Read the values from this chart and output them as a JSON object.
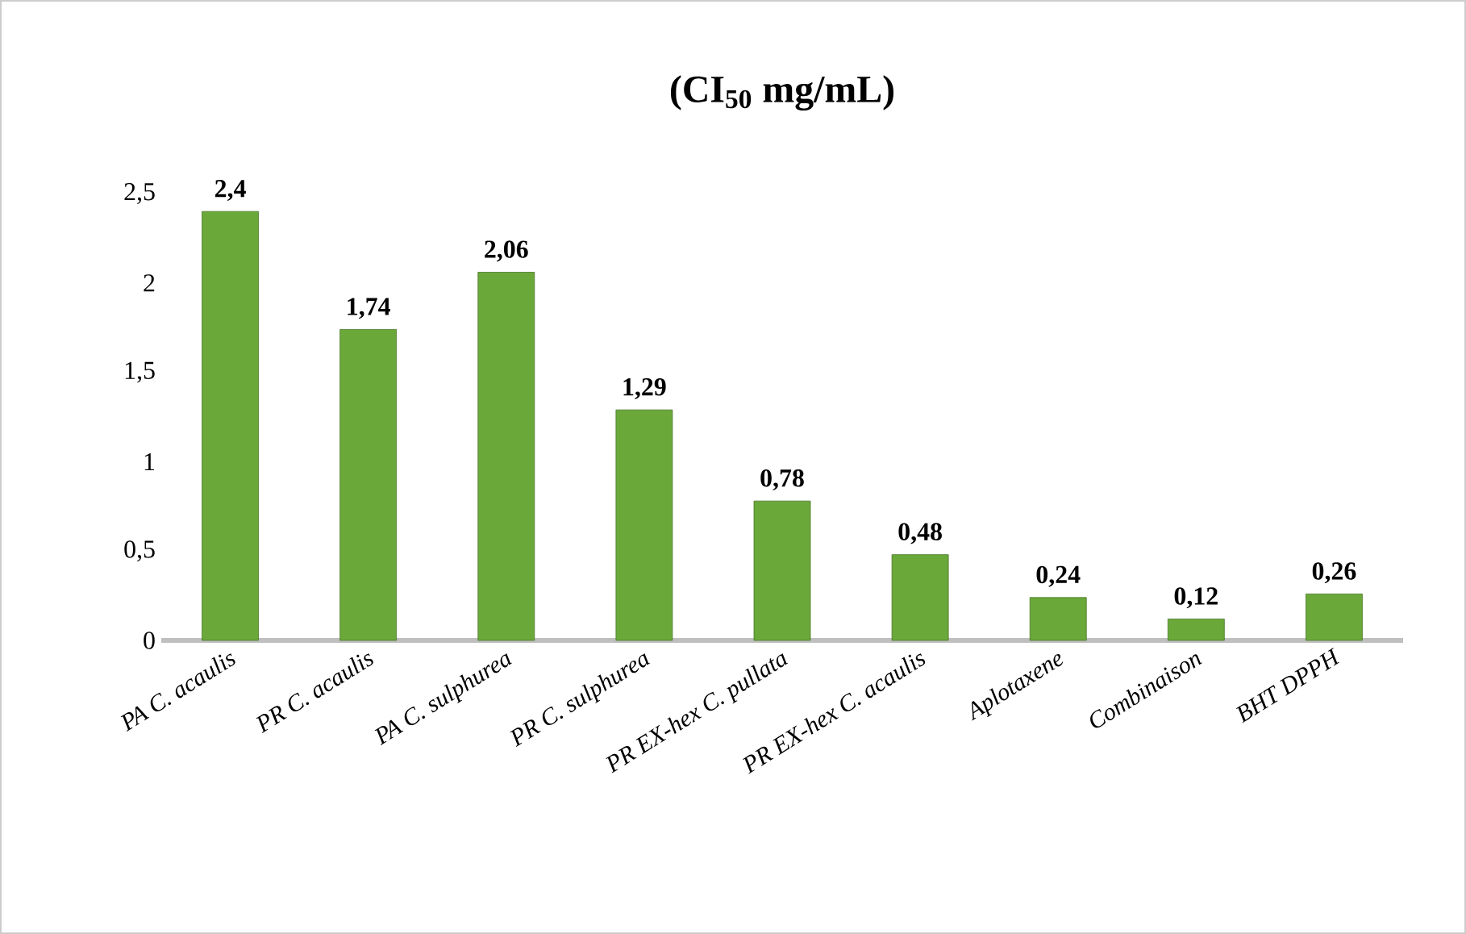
{
  "chart_data": {
    "type": "bar",
    "title": "(CI$_{50}$ mg/mL)",
    "categories": [
      "PA C. acaulis",
      "PR C. acaulis",
      "PA C. sulphurea",
      "PR C. sulphurea",
      "PR EX-hex C. pullata",
      "PR EX-hex C. acaulis",
      "Aplotaxene",
      "Combinaison",
      "BHT DPPH"
    ],
    "values": [
      2.4,
      1.74,
      2.06,
      1.29,
      0.78,
      0.48,
      0.24,
      0.12,
      0.26
    ],
    "value_labels": [
      "2,4",
      "1,74",
      "2,06",
      "1,29",
      "0,78",
      "0,48",
      "0,24",
      "0,12",
      "0,26"
    ],
    "color": "#6aa83a",
    "ylim": [
      0,
      2.5
    ],
    "yticks": [
      0,
      {
        "value": 0.5,
        "label": "0,5"
      },
      1,
      {
        "value": 1.5,
        "label": "1,5"
      },
      2,
      {
        "value": 2.5,
        "label": "2,5"
      }
    ],
    "grid": false
  }
}
